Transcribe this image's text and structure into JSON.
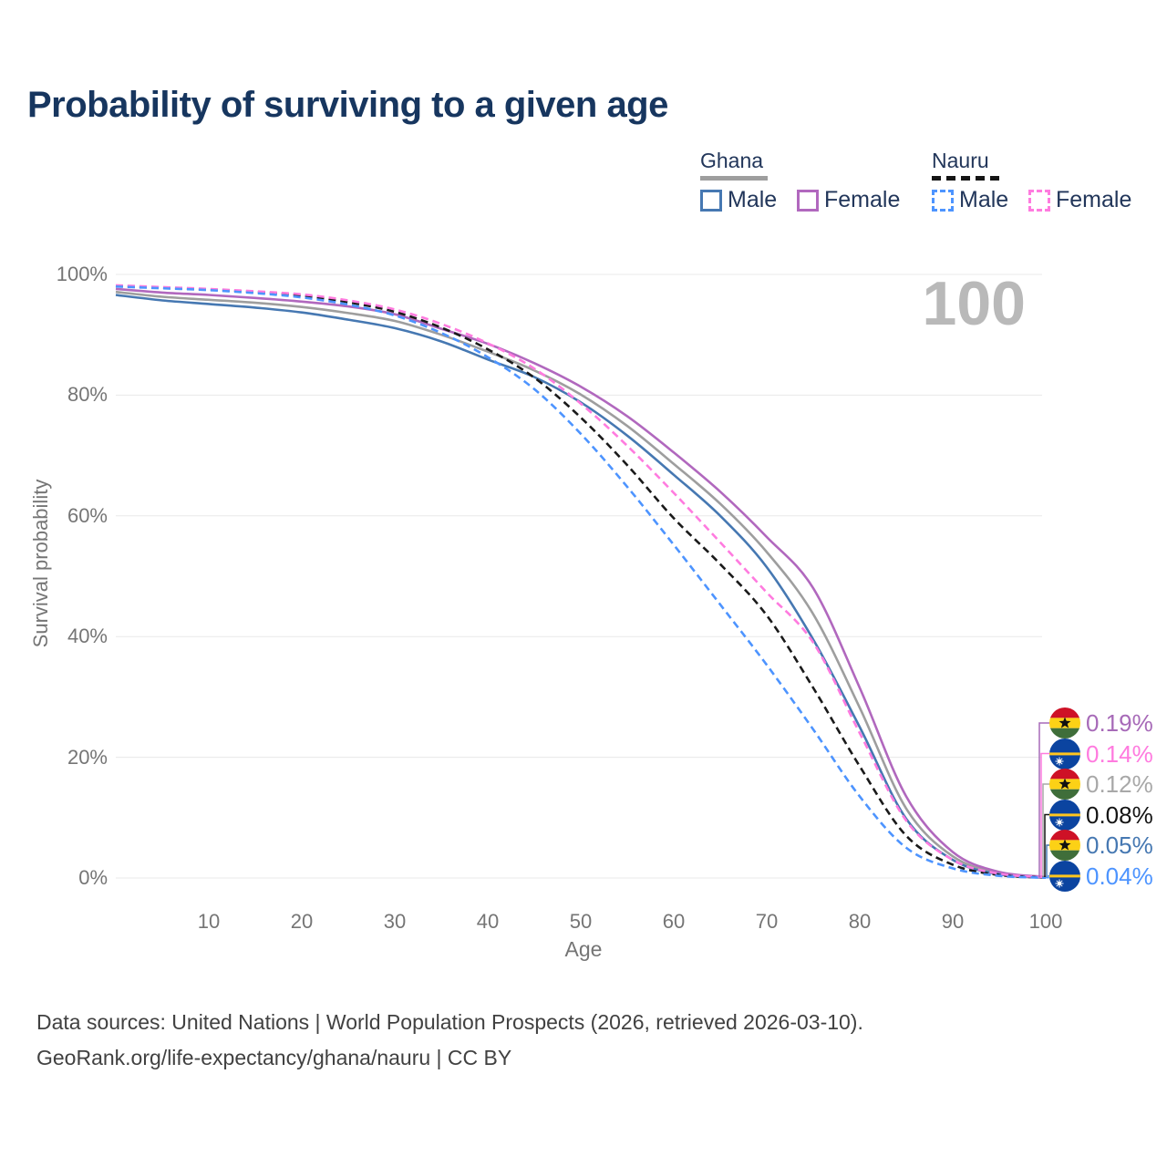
{
  "title": "Probability of surviving to a given age",
  "watermark_age": "100",
  "legend": {
    "groups": [
      {
        "country": "Ghana",
        "line_style": "solid",
        "underline_color": "#9e9e9e",
        "items": [
          {
            "label": "Male",
            "color": "#4678b2"
          },
          {
            "label": "Female",
            "color": "#b168be"
          }
        ]
      },
      {
        "country": "Nauru",
        "line_style": "dashed",
        "underline_color": "#151515",
        "items": [
          {
            "label": "Male",
            "color": "#4d94ff"
          },
          {
            "label": "Female",
            "color": "#ff7bdf"
          }
        ]
      }
    ]
  },
  "axes": {
    "y_label": "Survival probability",
    "x_label": "Age",
    "y_ticks": [
      "0%",
      "20%",
      "40%",
      "60%",
      "80%",
      "100%"
    ],
    "y_tick_values": [
      0,
      20,
      40,
      60,
      80,
      100
    ],
    "x_ticks": [
      10,
      20,
      30,
      40,
      50,
      60,
      70,
      80,
      90,
      100
    ]
  },
  "chart_data": {
    "type": "line",
    "title": "Probability of surviving to a given age",
    "xlabel": "Age",
    "ylabel": "Survival probability",
    "xlim": [
      0,
      100
    ],
    "ylim": [
      0,
      100
    ],
    "grid": "horizontal-only",
    "x": [
      0,
      5,
      10,
      15,
      20,
      25,
      30,
      35,
      40,
      45,
      50,
      55,
      60,
      65,
      70,
      75,
      80,
      85,
      90,
      95,
      100
    ],
    "series": [
      {
        "key": "ghana_all",
        "name": "Ghana (both sexes)",
        "color": "#9e9e9e",
        "dash": false,
        "values": [
          97.1,
          96.3,
          95.8,
          95.3,
          94.6,
          93.6,
          92.3,
          90.0,
          87.2,
          84.1,
          80.1,
          74.9,
          68.6,
          62.0,
          54.0,
          43.7,
          28.2,
          11.5,
          3.6,
          0.8,
          0.12
        ]
      },
      {
        "key": "ghana_female",
        "name": "Ghana Female",
        "color": "#b168be",
        "dash": false,
        "values": [
          97.6,
          97.0,
          96.6,
          96.1,
          95.5,
          94.7,
          93.4,
          91.0,
          88.5,
          85.3,
          81.4,
          76.5,
          70.5,
          64.0,
          56.5,
          48.0,
          31.5,
          13.5,
          4.3,
          1.0,
          0.19
        ]
      },
      {
        "key": "ghana_male",
        "name": "Ghana Male",
        "color": "#4678b2",
        "dash": false,
        "values": [
          96.6,
          95.7,
          95.1,
          94.5,
          93.7,
          92.5,
          91.1,
          88.9,
          85.9,
          83.0,
          78.8,
          73.3,
          66.8,
          60.0,
          51.5,
          39.5,
          25.0,
          9.8,
          3.0,
          0.6,
          0.05
        ]
      },
      {
        "key": "nauru_all",
        "name": "Nauru (both sexes)",
        "color": "#1a1a1a",
        "dash": true,
        "values": [
          98.1,
          97.8,
          97.5,
          97.1,
          96.5,
          95.4,
          93.8,
          91.2,
          87.6,
          82.9,
          76.3,
          68.4,
          59.6,
          52.0,
          43.5,
          31.5,
          18.5,
          7.0,
          2.2,
          0.5,
          0.08
        ]
      },
      {
        "key": "nauru_female",
        "name": "Nauru Female",
        "color": "#ff7bdf",
        "dash": true,
        "values": [
          98.2,
          97.9,
          97.6,
          97.2,
          96.7,
          95.7,
          94.2,
          91.8,
          88.6,
          84.4,
          78.6,
          71.6,
          63.8,
          55.6,
          47.3,
          39.0,
          24.0,
          9.5,
          3.0,
          0.7,
          0.14
        ]
      },
      {
        "key": "nauru_male",
        "name": "Nauru Male",
        "color": "#4d94ff",
        "dash": true,
        "values": [
          98.0,
          97.7,
          97.4,
          96.9,
          96.2,
          95.0,
          93.2,
          90.3,
          86.3,
          81.0,
          73.6,
          64.8,
          55.2,
          45.3,
          35.3,
          24.6,
          13.5,
          5.0,
          1.6,
          0.35,
          0.04
        ]
      }
    ]
  },
  "end_labels": [
    {
      "country": "ghana",
      "series_key": "ghana_female",
      "value": "0.19%",
      "color": "#a76ab8"
    },
    {
      "country": "nauru",
      "series_key": "nauru_female",
      "value": "0.14%",
      "color": "#ff7bdf"
    },
    {
      "country": "ghana",
      "series_key": "ghana_all",
      "value": "0.12%",
      "color": "#a8a8a8"
    },
    {
      "country": "nauru",
      "series_key": "nauru_all",
      "value": "0.08%",
      "color": "#141414"
    },
    {
      "country": "ghana",
      "series_key": "ghana_male",
      "value": "0.05%",
      "color": "#4678b2"
    },
    {
      "country": "nauru",
      "series_key": "nauru_male",
      "value": "0.04%",
      "color": "#4d94ff"
    }
  ],
  "footer": {
    "line1": "Data sources: United Nations | World Population Prospects (2026, retrieved 2026-03-10).",
    "line2": "GeoRank.org/life-expectancy/ghana/nauru | CC BY"
  },
  "colors": {
    "title": "#17365f",
    "axis_text": "#757575",
    "gridline": "#e8e8e8",
    "watermark": "#b9b9b9",
    "footer_text": "#414141"
  }
}
